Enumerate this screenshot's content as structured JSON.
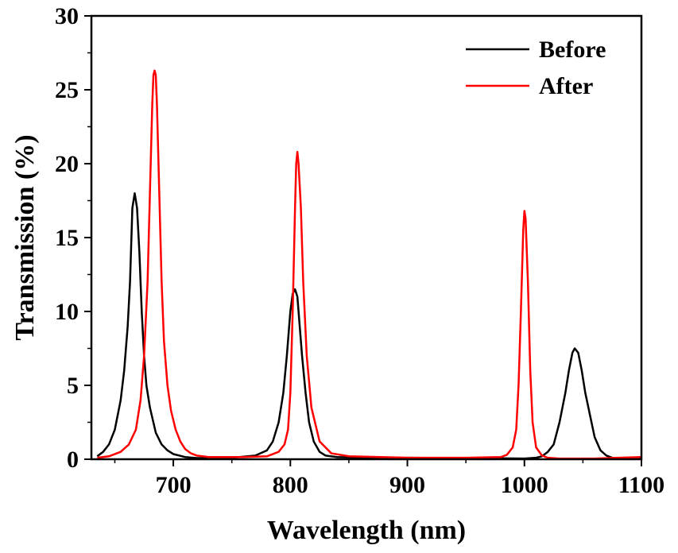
{
  "chart_data": {
    "type": "line",
    "title": "",
    "xlabel": "Wavelength (nm)",
    "ylabel": "Transmission (%)",
    "xlim": [
      630,
      1100
    ],
    "ylim": [
      0,
      30
    ],
    "xticks": [
      700,
      800,
      900,
      1000,
      1100
    ],
    "yticks": [
      0,
      5,
      10,
      15,
      20,
      25,
      30
    ],
    "xtick_labels": [
      "700",
      "800",
      "900",
      "1000",
      "1100"
    ],
    "ytick_labels": [
      "0",
      "5",
      "10",
      "15",
      "20",
      "25",
      "30"
    ],
    "grid": false,
    "legend_position": "top-right",
    "series": [
      {
        "name": "Before",
        "color": "#000000",
        "x": [
          635,
          640,
          645,
          650,
          655,
          658,
          661,
          663,
          665,
          667,
          669,
          671,
          673,
          675,
          677,
          680,
          685,
          690,
          695,
          700,
          710,
          720,
          750,
          770,
          780,
          785,
          790,
          794,
          797,
          800,
          802,
          804,
          806,
          808,
          810,
          813,
          816,
          820,
          825,
          830,
          840,
          860,
          900,
          950,
          1000,
          1010,
          1015,
          1020,
          1025,
          1030,
          1035,
          1038,
          1041,
          1043,
          1046,
          1049,
          1052,
          1056,
          1060,
          1065,
          1070,
          1075,
          1080,
          1090,
          1100
        ],
        "y": [
          0.2,
          0.5,
          1.0,
          2.0,
          4.0,
          6.0,
          9.0,
          12.0,
          17.0,
          18.0,
          17.0,
          14.0,
          10.0,
          7.0,
          5.0,
          3.5,
          1.8,
          1.0,
          0.6,
          0.35,
          0.15,
          0.08,
          0.1,
          0.25,
          0.6,
          1.2,
          2.5,
          4.5,
          7.0,
          10.0,
          11.2,
          11.5,
          11.0,
          9.0,
          7.0,
          4.5,
          2.5,
          1.2,
          0.5,
          0.25,
          0.15,
          0.1,
          0.1,
          0.08,
          0.05,
          0.1,
          0.2,
          0.5,
          1.0,
          2.5,
          4.5,
          6.0,
          7.2,
          7.5,
          7.2,
          6.0,
          4.5,
          3.0,
          1.5,
          0.6,
          0.25,
          0.1,
          0.05,
          0.02,
          0.02
        ]
      },
      {
        "name": "After",
        "color": "#ff0000",
        "x": [
          635,
          645,
          655,
          662,
          668,
          672,
          675,
          678,
          680,
          682,
          683,
          684,
          685,
          686,
          688,
          690,
          692,
          695,
          698,
          702,
          706,
          710,
          715,
          720,
          730,
          760,
          780,
          790,
          795,
          798,
          800,
          802,
          804,
          805,
          806,
          807,
          809,
          811,
          814,
          818,
          825,
          835,
          850,
          900,
          950,
          980,
          985,
          990,
          993,
          995,
          997,
          999,
          1000,
          1001,
          1003,
          1005,
          1007,
          1010,
          1015,
          1020,
          1030,
          1060,
          1100
        ],
        "y": [
          0.1,
          0.2,
          0.5,
          1.0,
          2.0,
          4.0,
          7.0,
          12.0,
          18.0,
          24.0,
          26.0,
          26.3,
          26.0,
          24.0,
          18.0,
          12.0,
          8.0,
          5.0,
          3.3,
          2.0,
          1.2,
          0.7,
          0.4,
          0.25,
          0.15,
          0.15,
          0.2,
          0.5,
          1.0,
          2.0,
          4.5,
          10.0,
          17.0,
          20.0,
          20.8,
          20.0,
          17.0,
          12.0,
          7.0,
          3.5,
          1.2,
          0.4,
          0.2,
          0.1,
          0.1,
          0.15,
          0.3,
          0.8,
          2.0,
          5.0,
          10.0,
          15.5,
          16.8,
          16.3,
          12.0,
          6.0,
          2.5,
          0.8,
          0.25,
          0.1,
          0.05,
          0.05,
          0.15
        ]
      }
    ]
  }
}
